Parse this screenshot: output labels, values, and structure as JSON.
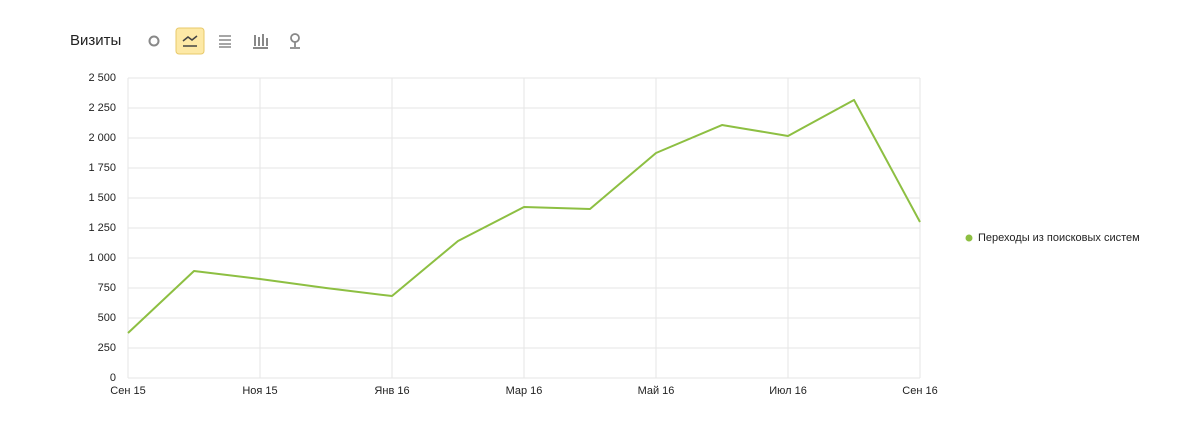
{
  "chart_data": {
    "type": "line",
    "title": "Визиты",
    "categories": [
      "Сен 15",
      null,
      "Ноя 15",
      null,
      "Янв 16",
      null,
      "Мар 16",
      null,
      "Май 16",
      null,
      "Июл 16",
      null,
      "Сен 16"
    ],
    "series": [
      {
        "name": "Переходы из поисковых систем",
        "color": "#8dbf42",
        "values": [
          375,
          892,
          825,
          750,
          683,
          1142,
          1425,
          1408,
          1875,
          2108,
          2017,
          2317,
          1300
        ]
      }
    ],
    "ylim": [
      0,
      2500
    ],
    "yticks": [
      0,
      250,
      500,
      750,
      {
        "value": 1000,
        "label": "1 000"
      },
      {
        "value": 1250,
        "label": "1 250"
      },
      {
        "value": 1500,
        "label": "1 500"
      },
      {
        "value": 1750,
        "label": "1 750"
      },
      {
        "value": 2000,
        "label": "2 000"
      },
      {
        "value": 2250,
        "label": "2 250"
      },
      {
        "value": 2500,
        "label": "2 500"
      }
    ],
    "grid": true,
    "legend": "right"
  }
}
